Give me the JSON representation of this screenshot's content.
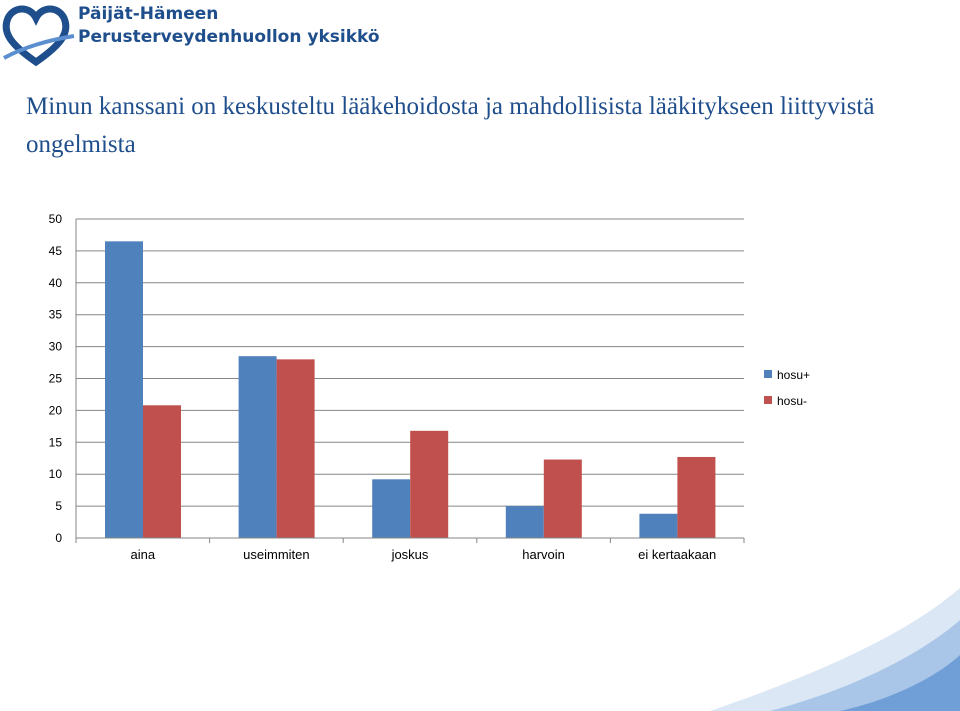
{
  "header": {
    "org_line1": "Päijät-Hämeen",
    "org_line2": "Perusterveydenhuollon yksikkö"
  },
  "page_title": "Minun kanssani on keskusteltu lääkehoidosta ja mahdollisista lääkitykseen liittyvistä ongelmista",
  "colors": {
    "brand": "#1f4e8c",
    "series_1": "#4f81bd",
    "series_2": "#c0504d",
    "grid": "#868686"
  },
  "chart_data": {
    "type": "bar",
    "title": "",
    "xlabel": "",
    "ylabel": "",
    "categories": [
      "aina",
      "useimmiten",
      "joskus",
      "harvoin",
      "ei kertaakaan"
    ],
    "series": [
      {
        "name": "hosu+",
        "values": [
          46.5,
          28.5,
          9.2,
          5.0,
          3.8
        ],
        "color": "#4f81bd"
      },
      {
        "name": "hosu-",
        "values": [
          20.8,
          28.0,
          16.8,
          12.3,
          12.7
        ],
        "color": "#c0504d"
      }
    ],
    "ylim": [
      0,
      50
    ],
    "yticks": [
      0,
      5,
      10,
      15,
      20,
      25,
      30,
      35,
      40,
      45,
      50
    ],
    "grid": true,
    "legend": "right"
  }
}
